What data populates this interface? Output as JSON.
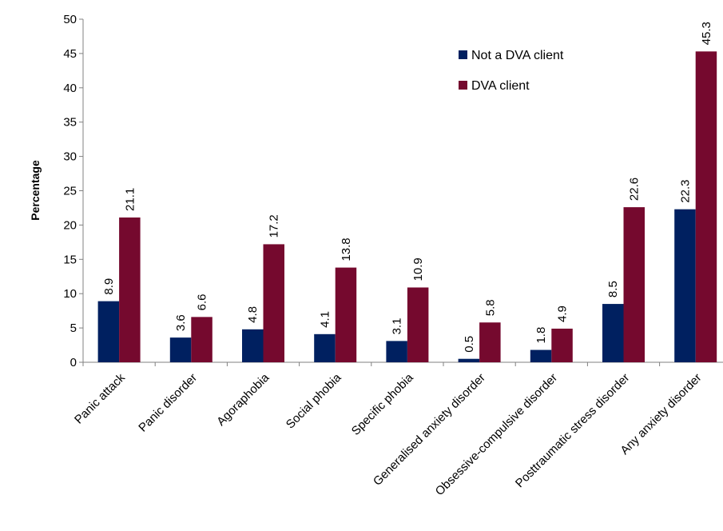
{
  "chart_data": {
    "type": "bar",
    "title": "",
    "xlabel": "",
    "ylabel": "Percentage",
    "ylim": [
      0,
      50
    ],
    "yticks": [
      0,
      5,
      10,
      15,
      20,
      25,
      30,
      35,
      40,
      45,
      50
    ],
    "grid": false,
    "legend_position": "top-right",
    "categories": [
      "Panic attack",
      "Panic disorder",
      "Agoraphobia",
      "Social phobia",
      "Specific phobia",
      "Generalised anxiety disorder",
      "Obsessive-compulsive disorder",
      "Posttraumatic stress disorder",
      "Any anxiety disorder"
    ],
    "series": [
      {
        "name": "Not a DVA client",
        "color": "#002060",
        "values": [
          8.9,
          3.6,
          4.8,
          4.1,
          3.1,
          0.5,
          1.8,
          8.5,
          22.3
        ],
        "labels": [
          "8.9",
          "3.6",
          "4.8",
          "4.1",
          "3.1",
          "0.5",
          "1.8",
          "8.5",
          "22.3"
        ]
      },
      {
        "name": "DVA client",
        "color": "#75092E",
        "values": [
          21.1,
          6.6,
          17.2,
          13.8,
          10.9,
          5.8,
          4.9,
          22.6,
          45.3
        ],
        "labels": [
          "21.1",
          "6.6",
          "17.2",
          "13.8",
          "10.9",
          "5.8",
          "4.9",
          "22.6",
          "45.3"
        ]
      }
    ]
  }
}
